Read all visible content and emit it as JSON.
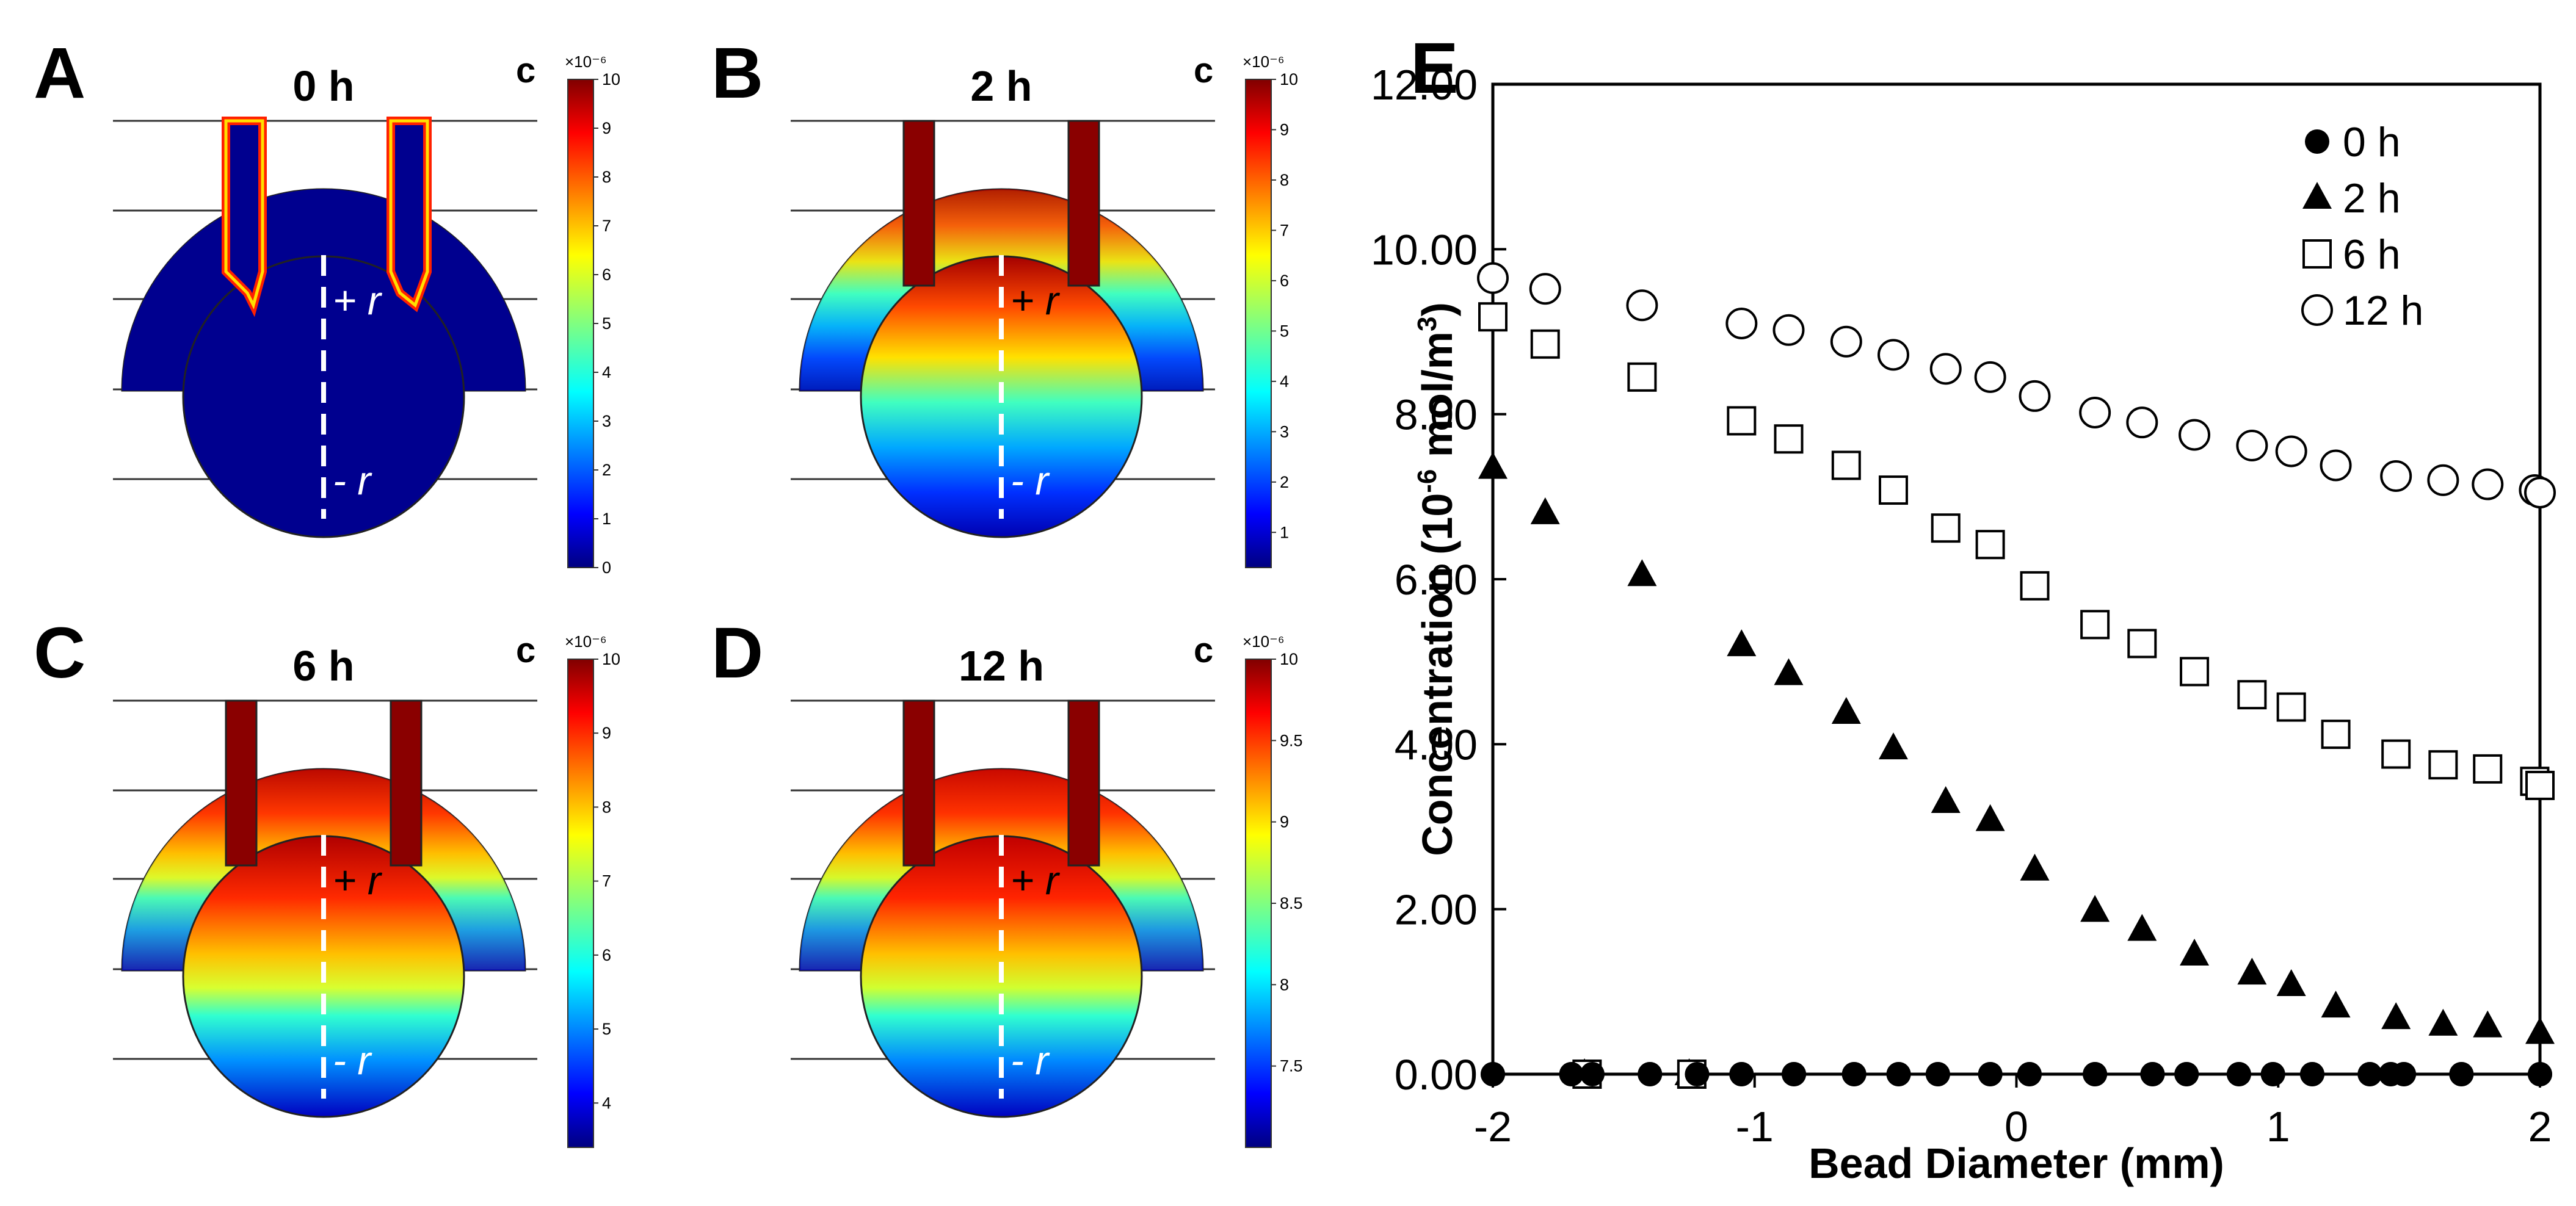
{
  "figure": {
    "panels": [
      {
        "letter": "A",
        "time": "0 h",
        "cbar": {
          "title": "c",
          "exponent": "×10⁻⁶",
          "ticks": [
            "10",
            "9",
            "8",
            "7",
            "6",
            "5",
            "4",
            "3",
            "2",
            "1",
            "0"
          ],
          "min": 0,
          "max": 10
        },
        "state": "t0"
      },
      {
        "letter": "B",
        "time": "2 h",
        "cbar": {
          "title": "c",
          "exponent": "×10⁻⁶",
          "ticks": [
            "10",
            "9",
            "8",
            "7",
            "6",
            "5",
            "4",
            "3",
            "2",
            "1"
          ],
          "min": 0.3,
          "max": 10
        },
        "state": "t2"
      },
      {
        "letter": "C",
        "time": "6 h",
        "cbar": {
          "title": "c",
          "exponent": "×10⁻⁶",
          "ticks": [
            "10",
            "9",
            "8",
            "7",
            "6",
            "5",
            "4"
          ],
          "min": 3.4,
          "max": 10
        },
        "state": "t6"
      },
      {
        "letter": "D",
        "time": "12 h",
        "cbar": {
          "title": "c",
          "exponent": "×10⁻⁶",
          "ticks": [
            "10",
            "9.5",
            "9",
            "8.5",
            "8",
            "7.5"
          ],
          "min": 7.0,
          "max": 10
        },
        "state": "t12"
      }
    ],
    "axis_labels": {
      "plus": "+ r",
      "minus": "- r"
    }
  },
  "chart_data": {
    "type": "scatter",
    "panel_letter": "E",
    "xlabel": "Bead Diameter (mm)",
    "ylabel_main": "Concentration (10",
    "ylabel_exp": "-6",
    "ylabel_unit": " mol/m",
    "ylabel_unit_exp": "3",
    "ylabel_end": ")",
    "xlim": [
      -2,
      2
    ],
    "ylim": [
      0,
      12
    ],
    "xticks": [
      -2,
      -1,
      0,
      1,
      2
    ],
    "xtick_labels": [
      "-2",
      "-1",
      "0",
      "1",
      "2"
    ],
    "yticks": [
      0,
      2,
      4,
      6,
      8,
      10,
      12
    ],
    "ytick_labels": [
      "0.00",
      "2.00",
      "4.00",
      "6.00",
      "8.00",
      "10.00",
      "12.00"
    ],
    "legend_position": "top-right",
    "series": [
      {
        "name": "0 h",
        "marker": "filled-circle",
        "x": [
          -2.0,
          -1.7,
          -1.62,
          -1.4,
          -1.22,
          -1.05,
          -0.85,
          -0.62,
          -0.45,
          -0.3,
          -0.1,
          0.05,
          0.3,
          0.52,
          0.65,
          0.85,
          0.98,
          1.13,
          1.35,
          1.43,
          1.48,
          1.7,
          2.0
        ],
        "y": [
          0,
          0,
          0,
          0,
          0,
          0,
          0,
          0,
          0,
          0,
          0,
          0,
          0,
          0,
          0,
          0,
          0,
          0,
          0,
          0,
          0,
          0,
          0
        ]
      },
      {
        "name": "2 h",
        "marker": "filled-triangle",
        "x": [
          -2.0,
          -1.8,
          -1.43,
          -1.05,
          -0.87,
          -0.65,
          -0.47,
          -0.27,
          -0.1,
          0.07,
          0.3,
          0.48,
          0.68,
          0.9,
          1.05,
          1.22,
          1.45,
          1.63,
          1.8,
          2.0
        ],
        "y": [
          7.35,
          6.8,
          6.05,
          5.2,
          4.85,
          4.38,
          3.95,
          3.3,
          3.08,
          2.48,
          1.98,
          1.75,
          1.45,
          1.22,
          1.08,
          0.82,
          0.68,
          0.6,
          0.58,
          0.5
        ],
        "extra_x": [
          -1.65,
          -1.25
        ],
        "extra_y": [
          0,
          0
        ]
      },
      {
        "name": "6 h",
        "marker": "open-square",
        "x": [
          -2.0,
          -1.8,
          -1.43,
          -1.05,
          -0.87,
          -0.65,
          -0.47,
          -0.27,
          -0.1,
          0.07,
          0.3,
          0.48,
          0.68,
          0.9,
          1.05,
          1.22,
          1.45,
          1.63,
          1.8,
          1.98,
          2.0
        ],
        "y": [
          9.18,
          8.85,
          8.45,
          7.92,
          7.7,
          7.38,
          7.08,
          6.62,
          6.42,
          5.92,
          5.45,
          5.22,
          4.88,
          4.6,
          4.45,
          4.12,
          3.88,
          3.75,
          3.7,
          3.55,
          3.5
        ],
        "extra_x": [
          -1.64,
          -1.24
        ],
        "extra_y": [
          0,
          0
        ]
      },
      {
        "name": "12 h",
        "marker": "open-circle",
        "x": [
          -2.0,
          -1.8,
          -1.43,
          -1.05,
          -0.87,
          -0.65,
          -0.47,
          -0.27,
          -0.1,
          0.07,
          0.3,
          0.48,
          0.68,
          0.9,
          1.05,
          1.22,
          1.45,
          1.63,
          1.8,
          1.98,
          2.0
        ],
        "y": [
          9.65,
          9.52,
          9.32,
          9.1,
          9.02,
          8.88,
          8.72,
          8.55,
          8.45,
          8.22,
          8.02,
          7.9,
          7.75,
          7.62,
          7.55,
          7.38,
          7.25,
          7.2,
          7.15,
          7.08,
          7.05
        ]
      }
    ]
  }
}
